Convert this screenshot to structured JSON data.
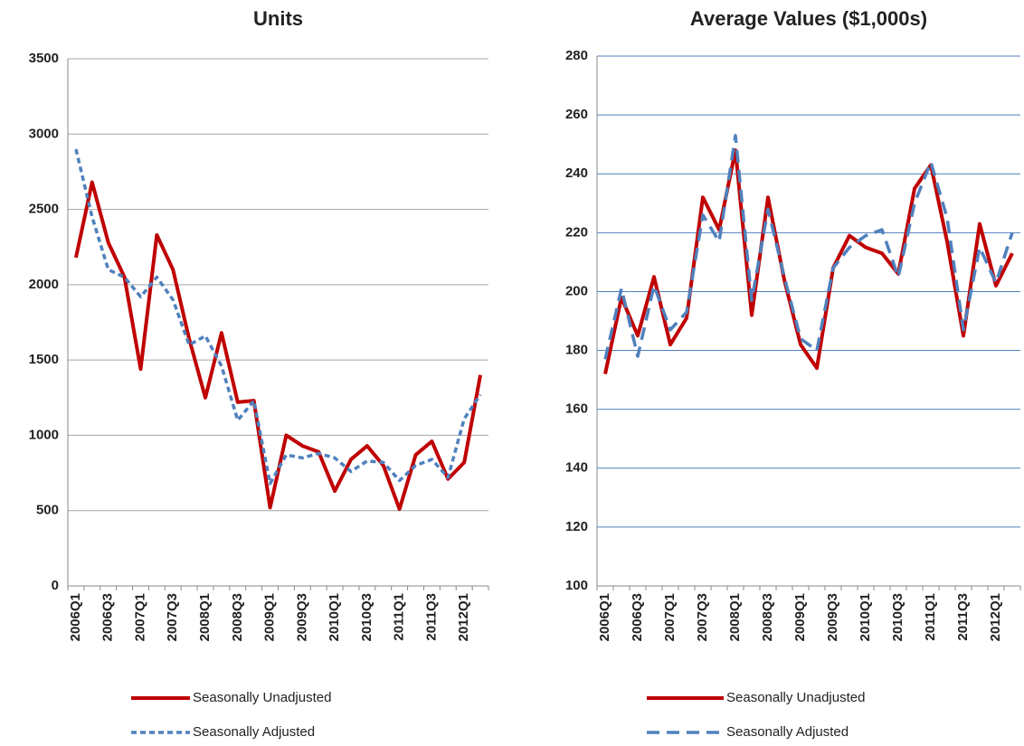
{
  "chart_data": [
    {
      "type": "line",
      "title": "Units",
      "categories": [
        "2006Q1",
        null,
        "2006Q3",
        null,
        "2007Q1",
        null,
        "2007Q3",
        null,
        "2008Q1",
        null,
        "2008Q3",
        null,
        "2009Q1",
        null,
        "2009Q3",
        null,
        "2010Q1",
        null,
        "2010Q3",
        null,
        "2011Q1",
        null,
        "2011Q3",
        null,
        "2012Q1",
        null
      ],
      "series": [
        {
          "name": "Seasonally Unadjusted",
          "color": "#c00000",
          "dash": "solid",
          "values": [
            2180,
            2680,
            2280,
            2050,
            1440,
            2330,
            2100,
            1640,
            1250,
            1680,
            1220,
            1230,
            520,
            1000,
            930,
            890,
            630,
            840,
            930,
            800,
            510,
            870,
            960,
            710,
            820,
            1400
          ]
        },
        {
          "name": "Seasonally Adjusted",
          "color": "#4f81bd",
          "dash": "dotted",
          "values": [
            2900,
            2450,
            2100,
            2050,
            1920,
            2050,
            1900,
            1600,
            1660,
            1460,
            1100,
            1230,
            680,
            870,
            850,
            880,
            850,
            760,
            830,
            820,
            700,
            800,
            840,
            720,
            1110,
            1270
          ]
        }
      ],
      "ylim": [
        0,
        3500
      ],
      "yticks": [
        0,
        500,
        1000,
        1500,
        2000,
        2500,
        3000,
        3500
      ],
      "grid": true,
      "grid_color": "#a6a6a6",
      "legend": "bottom"
    },
    {
      "type": "line",
      "title": "Average Values ($1,000s)",
      "categories": [
        "2006Q1",
        null,
        "2006Q3",
        null,
        "2007Q1",
        null,
        "2007Q3",
        null,
        "2008Q1",
        null,
        "2008Q3",
        null,
        "2009Q1",
        null,
        "2009Q3",
        null,
        "2010Q1",
        null,
        "2010Q3",
        null,
        "2011Q1",
        null,
        "2011Q3",
        null,
        "2012Q1",
        null
      ],
      "series": [
        {
          "name": "Seasonally Unadjusted",
          "color": "#c00000",
          "dash": "solid",
          "values": [
            172,
            198,
            185,
            205,
            182,
            191,
            232,
            221,
            248,
            192,
            232,
            204,
            182,
            174,
            208,
            219,
            215,
            213,
            206,
            235,
            243,
            217,
            185,
            223,
            202,
            213
          ]
        },
        {
          "name": "Seasonally Adjusted",
          "color": "#4f81bd",
          "dash": "dashed",
          "values": [
            177,
            201,
            178,
            202,
            187,
            193,
            226,
            217,
            253,
            197,
            228,
            205,
            184,
            180,
            208,
            215,
            219,
            221,
            205,
            230,
            244,
            225,
            187,
            215,
            203,
            220
          ]
        }
      ],
      "ylim": [
        100,
        280
      ],
      "yticks": [
        100,
        120,
        140,
        160,
        180,
        200,
        220,
        240,
        260,
        280
      ],
      "grid": true,
      "grid_color": "#4f81bd",
      "legend": "bottom"
    }
  ]
}
